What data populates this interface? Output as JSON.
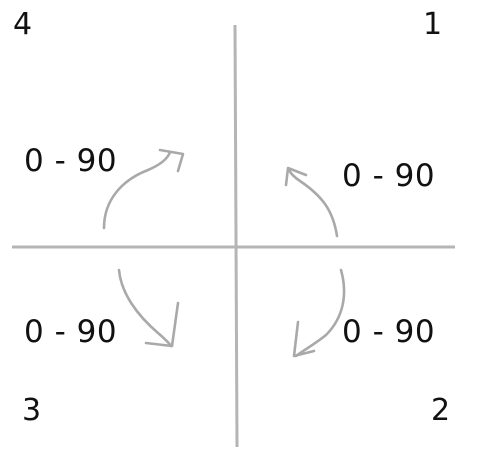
{
  "quadrants": [
    {
      "number": "1",
      "range": "0 - 90"
    },
    {
      "number": "2",
      "range": "0 - 90"
    },
    {
      "number": "3",
      "range": "0 - 90"
    },
    {
      "number": "4",
      "range": "0 - 90"
    }
  ],
  "colors": {
    "axis": "#b5b5b5",
    "arrow": "#a9a9a9",
    "text": "#111111",
    "background": "#ffffff"
  }
}
